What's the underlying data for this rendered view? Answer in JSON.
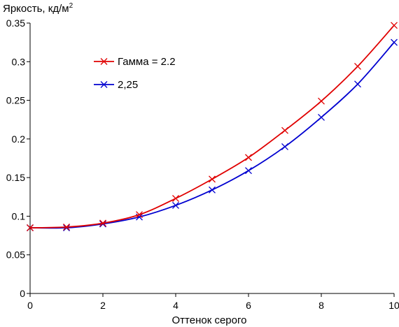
{
  "chart_data": {
    "type": "line",
    "ylabel": "Яркость, кд/м",
    "ylabel_sup": "2",
    "xlabel": "Оттенок серого",
    "xlim": [
      0,
      10
    ],
    "ylim": [
      0,
      0.35
    ],
    "xticks": [
      "0",
      "2",
      "4",
      "6",
      "8",
      "10"
    ],
    "yticks": [
      "0",
      "0.05",
      "0.1",
      "0.15",
      "0.2",
      "0.25",
      "0.3",
      "0.35"
    ],
    "grid": false,
    "legend_position": "upper-left",
    "x": [
      0,
      1,
      2,
      3,
      4,
      5,
      6,
      7,
      8,
      9,
      10
    ],
    "series": [
      {
        "name": "Гамма = 2.2",
        "color": "#e00000",
        "marker": "x",
        "values": [
          0.085,
          0.086,
          0.091,
          0.102,
          0.123,
          0.148,
          0.176,
          0.211,
          0.249,
          0.294,
          0.347
        ]
      },
      {
        "name": "2,25",
        "color": "#0000d0",
        "marker": "x",
        "values": [
          0.085,
          0.085,
          0.09,
          0.099,
          0.114,
          0.134,
          0.159,
          0.19,
          0.228,
          0.271,
          0.325
        ]
      }
    ]
  }
}
